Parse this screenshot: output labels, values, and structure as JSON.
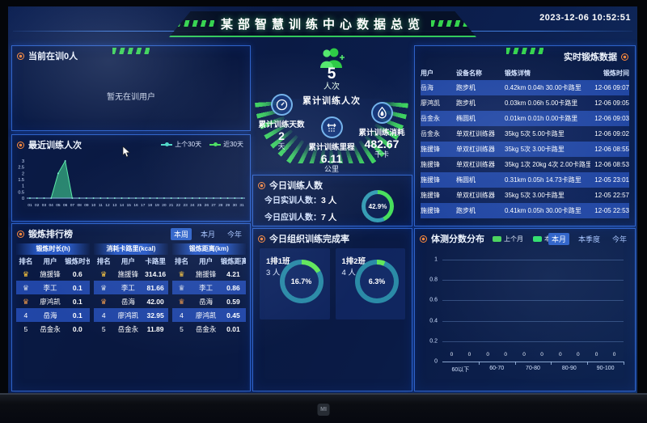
{
  "meta": {
    "title": "某部智慧训练中心数据总览",
    "timestamp": "2023-12-06 10:52:51",
    "brand": "MI"
  },
  "colors": {
    "green": "#3fe05a",
    "teal": "#38cfc0",
    "panel_border": "#2e62c8",
    "orange": "#ff8a3d",
    "tab_active": "#2e62c8"
  },
  "current_panel": {
    "title": "当前在训0人",
    "empty": "暂无在训用户"
  },
  "recent_chart": {
    "type": "area",
    "title": "最近训练人次",
    "legend": [
      {
        "label": "上个30天",
        "color": "#4fd8c8"
      },
      {
        "label": "近30天",
        "color": "#46e05a"
      }
    ],
    "y_ticks": [
      0,
      0.5,
      1,
      1.5,
      2,
      2.5,
      3
    ],
    "y_max": 3,
    "x_labels": [
      "01",
      "02",
      "03",
      "04",
      "05",
      "06",
      "07",
      "08",
      "09",
      "10",
      "11",
      "12",
      "13",
      "14",
      "15",
      "16",
      "17",
      "18",
      "19",
      "20",
      "21",
      "22",
      "23",
      "24",
      "25",
      "26",
      "27",
      "28",
      "29",
      "30",
      "31"
    ],
    "values": [
      0,
      0,
      0,
      0,
      2,
      3,
      0,
      0,
      0,
      0,
      0,
      0,
      0,
      0,
      0,
      0,
      0,
      0,
      0,
      0,
      0,
      0,
      0,
      0,
      0,
      0,
      0,
      0,
      0,
      0,
      0
    ]
  },
  "rankings": {
    "title": "锻炼排行榜",
    "tabs": [
      {
        "label": "本周",
        "active": true
      },
      {
        "label": "本月",
        "active": false
      },
      {
        "label": "今年",
        "active": false
      }
    ],
    "tables": [
      {
        "group": "锻炼时长(h)",
        "cols": [
          "排名",
          "用户",
          "锻炼时长"
        ],
        "rows": [
          [
            "1",
            "施援锋",
            "0.6"
          ],
          [
            "2",
            "李工",
            "0.1"
          ],
          [
            "3",
            "廖鸿凯",
            "0.1"
          ],
          [
            "4",
            "岳海",
            "0.1"
          ],
          [
            "5",
            "岳金永",
            "0.0"
          ]
        ]
      },
      {
        "group": "消耗卡路里(kcal)",
        "cols": [
          "排名",
          "用户",
          "卡路里"
        ],
        "rows": [
          [
            "1",
            "施援锋",
            "314.16"
          ],
          [
            "2",
            "李工",
            "81.66"
          ],
          [
            "3",
            "岳海",
            "42.00"
          ],
          [
            "4",
            "廖鸿凯",
            "32.95"
          ],
          [
            "5",
            "岳金永",
            "11.89"
          ]
        ]
      },
      {
        "group": "锻炼距离(km)",
        "cols": [
          "排名",
          "用户",
          "锻炼距离"
        ],
        "rows": [
          [
            "1",
            "施援锋",
            "4.21"
          ],
          [
            "2",
            "李工",
            "0.86"
          ],
          [
            "3",
            "岳海",
            "0.59"
          ],
          [
            "4",
            "廖鸿凯",
            "0.45"
          ],
          [
            "5",
            "岳金永",
            "0.01"
          ]
        ]
      }
    ]
  },
  "stats": {
    "main_value": "5",
    "main_unit": "人次",
    "main_label": "累计训练人次",
    "items": [
      {
        "icon": "gauge-icon",
        "label": "累计训练天数",
        "value": "2",
        "unit": "天"
      },
      {
        "icon": "distance-icon",
        "label": "累计训练里程",
        "value": "6.11",
        "unit": "公里"
      },
      {
        "icon": "calorie-icon",
        "label": "累计训练消耗",
        "value": "482.67",
        "unit": "千卡"
      }
    ]
  },
  "today": {
    "title": "今日训练人数",
    "rows": [
      {
        "label": "今日实训人数：",
        "value": "3 人"
      },
      {
        "label": "今日应训人数：",
        "value": "7 人"
      }
    ],
    "percent": "42.9%",
    "pct": 42.9
  },
  "completion": {
    "title": "今日组织训练完成率",
    "cards": [
      {
        "name": "1排1班",
        "count": "3 人",
        "percent": "16.7%",
        "pct": 16.7
      },
      {
        "name": "1排2班",
        "count": "4 人",
        "percent": "6.3%",
        "pct": 6.3
      }
    ]
  },
  "realtime": {
    "title": "实时锻炼数据",
    "cols": [
      "用户",
      "设备名称",
      "锻炼详情",
      "锻炼时间"
    ],
    "rows": [
      [
        "岳海",
        "跑步机",
        "0.42km 0.04h 30.00卡路里",
        "12-06 09:07"
      ],
      [
        "廖鸿凯",
        "跑步机",
        "0.03km 0.06h 5.00卡路里",
        "12-06 09:05"
      ],
      [
        "岳金永",
        "椭圆机",
        "0.01km 0.01h 0.00卡路里",
        "12-06 09:03"
      ],
      [
        "岳金永",
        "单双杠训练器",
        "35kg 5次 5.00卡路里",
        "12-06 09:02"
      ],
      [
        "施援锋",
        "单双杠训练器",
        "35kg 5次 3.00卡路里",
        "12-06 08:55"
      ],
      [
        "施援锋",
        "单双杠训练器",
        "35kg 1次 20kg 4次 2.00卡路里",
        "12-06 08:53"
      ],
      [
        "施援锋",
        "椭圆机",
        "0.31km 0.05h 14.73卡路里",
        "12-05 23:01"
      ],
      [
        "施援锋",
        "单双杠训练器",
        "35kg 5次 3.00卡路里",
        "12-05 22:57"
      ],
      [
        "施援锋",
        "跑步机",
        "0.41km 0.05h 30.00卡路里",
        "12-05 22:53"
      ]
    ]
  },
  "score_chart": {
    "type": "bar",
    "title": "体测分数分布",
    "legend": [
      {
        "label": "上个月",
        "color": "#49d45a"
      },
      {
        "label": "本月",
        "color": "#2fe06a"
      }
    ],
    "tabs": [
      {
        "label": "本月",
        "active": true
      },
      {
        "label": "本季度",
        "active": false
      },
      {
        "label": "今年",
        "active": false
      }
    ],
    "y_ticks": [
      0,
      0.2,
      0.4,
      0.6,
      0.8,
      1
    ],
    "categories": [
      "60以下",
      "60-70",
      "70-80",
      "80-90",
      "90-100"
    ],
    "series": [
      {
        "name": "上个月",
        "values": [
          0,
          0,
          0,
          0,
          0
        ]
      },
      {
        "name": "本月",
        "values": [
          0,
          0,
          0,
          0,
          0
        ]
      }
    ]
  }
}
